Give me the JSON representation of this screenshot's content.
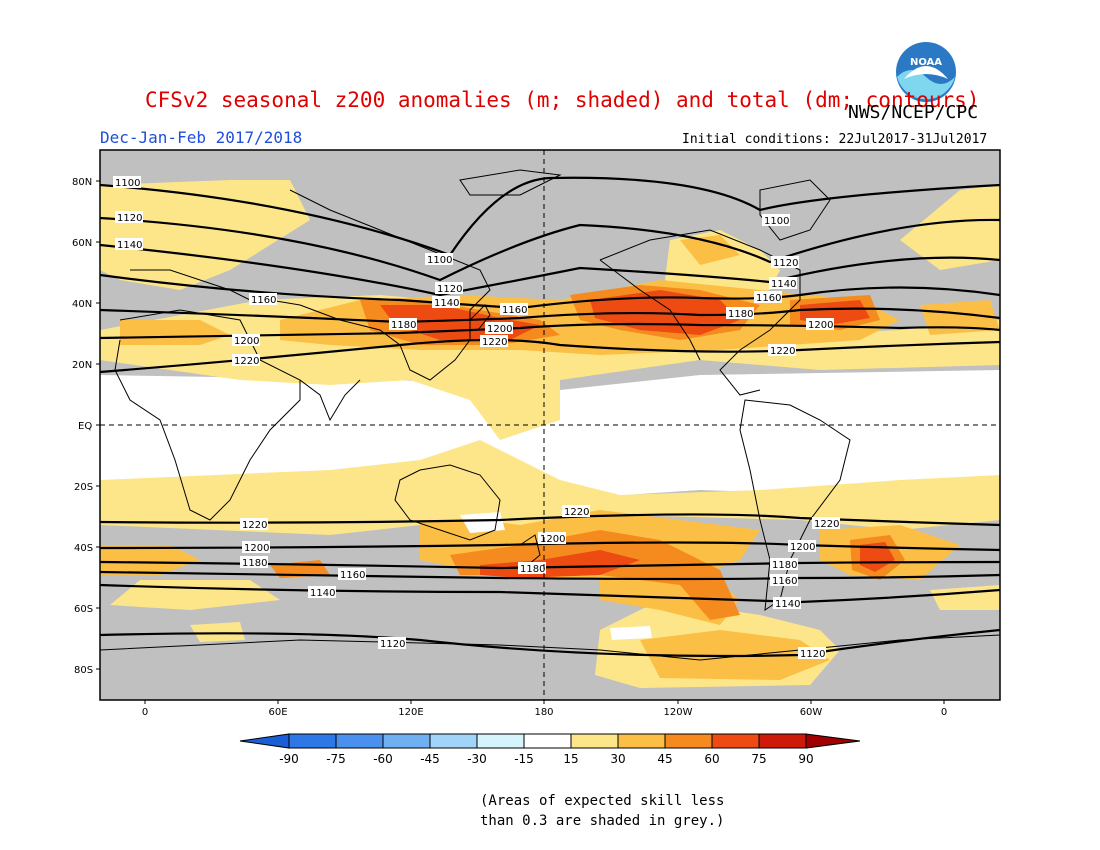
{
  "header": {
    "title": "CFSv2 seasonal z200 anomalies (m; shaded) and total (dm; contours)",
    "agency": "NWS/NCEP/CPC",
    "season": "Dec-Jan-Feb 2017/2018",
    "initial_conditions": "Initial conditions: 22Jul2017-31Jul2017",
    "logo_text": "NOAA"
  },
  "map": {
    "lat_labels": [
      "80N",
      "60N",
      "40N",
      "20N",
      "EQ",
      "20S",
      "40S",
      "60S",
      "80S"
    ],
    "lon_labels": [
      "0",
      "60E",
      "120E",
      "180",
      "120W",
      "60W",
      "0"
    ],
    "contour_labels": {
      "nh": [
        "1100",
        "1120",
        "1140",
        "1160",
        "1180",
        "1200",
        "1220"
      ],
      "sh": [
        "1220",
        "1200",
        "1180",
        "1160",
        "1140",
        "1120"
      ]
    },
    "colors": {
      "grey": "#c0c0c0",
      "white": "#ffffff",
      "c15_30": "#fde68a",
      "c30_45": "#fbbf46",
      "c45_60": "#f58a1f",
      "c60_75": "#ed4b12",
      "c75_90": "#cf1a0a"
    }
  },
  "colorbar": {
    "labels": [
      "-90",
      "-75",
      "-60",
      "-45",
      "-30",
      "-15",
      "15",
      "30",
      "45",
      "60",
      "75",
      "90"
    ],
    "colors": [
      "#1a5fd6",
      "#2e77e6",
      "#4a90ee",
      "#6fb0f3",
      "#a2d4fa",
      "#d6f4fb",
      "#ffffff",
      "#fde68a",
      "#fbbf46",
      "#f58a1f",
      "#ed4b12",
      "#cf1a0a",
      "#a00000"
    ]
  },
  "footnote": {
    "line1": "(Areas of expected skill less",
    "line2": "than 0.3 are shaded in grey.)"
  }
}
